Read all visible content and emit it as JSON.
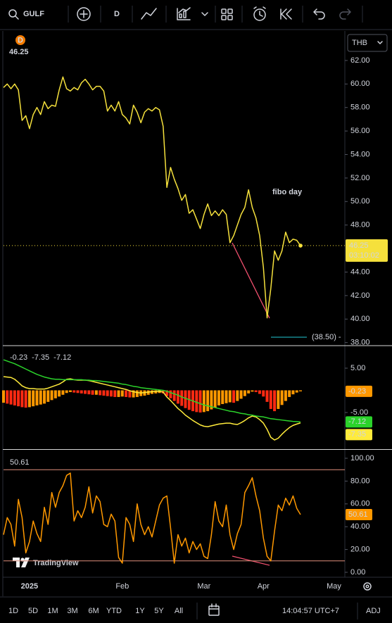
{
  "toolbar": {
    "symbol": "GULF",
    "interval": "D"
  },
  "watermark": "TradingView",
  "bottom_bar": {
    "ranges": [
      "1D",
      "5D",
      "1M",
      "3M",
      "6M",
      "YTD",
      "1Y",
      "5Y",
      "All"
    ],
    "clock": "14:04:57 UTC+7",
    "adjust": "ADJ"
  },
  "chart_data": [
    {
      "type": "line",
      "categories": [
        null,
        null,
        null,
        null,
        null,
        null,
        null,
        "2025",
        null,
        null,
        null,
        null,
        null,
        null,
        null,
        null,
        null,
        null,
        null,
        null,
        null,
        null,
        null,
        null,
        null,
        null,
        null,
        null,
        null,
        null,
        null,
        null,
        "Feb",
        null,
        null,
        null,
        null,
        null,
        null,
        null,
        null,
        null,
        null,
        null,
        null,
        null,
        null,
        null,
        null,
        null,
        null,
        null,
        null,
        null,
        "Mar",
        null,
        null,
        null,
        null,
        null,
        null,
        null,
        null,
        null,
        null,
        null,
        null,
        null,
        null,
        null,
        "Apr",
        null,
        null,
        null,
        null,
        null,
        null,
        null,
        null,
        null,
        null,
        null,
        null,
        null,
        null,
        null,
        null,
        null,
        null,
        "May",
        null,
        null
      ],
      "series": [
        {
          "color": "#f5e03c",
          "values": [
            59.7,
            60.0,
            59.6,
            60.0,
            59.5,
            56.9,
            57.3,
            56.2,
            57.4,
            58.0,
            57.4,
            58.5,
            57.9,
            58.2,
            58.1,
            59.5,
            60.6,
            59.6,
            59.4,
            59.7,
            59.5,
            60.1,
            60.4,
            60.0,
            59.5,
            59.8,
            59.8,
            59.4,
            57.7,
            58.2,
            57.7,
            58.5,
            57.4,
            57.1,
            56.6,
            58.2,
            57.6,
            56.7,
            57.6,
            57.9,
            57.7,
            58.0,
            57.8,
            56.4,
            51.2,
            52.9,
            51.9,
            51.1,
            50.1,
            50.6,
            49.0,
            49.3,
            48.5,
            47.7,
            48.9,
            49.8,
            48.8,
            49.2,
            48.8,
            49.3,
            48.9,
            46.5,
            47.1,
            48.0,
            48.9,
            49.5,
            51.0,
            49.5,
            48.6,
            47.1,
            44.4,
            40.1,
            42.6,
            45.8,
            45.0,
            45.8,
            47.4,
            46.5,
            46.8,
            46.7,
            46.25,
            null,
            null,
            null,
            null,
            null,
            null,
            null,
            null,
            null,
            null,
            null
          ]
        }
      ],
      "ylim": [
        37.8,
        64.45
      ],
      "yticks": [
        {
          "value": 38,
          "label": "38.00"
        },
        {
          "value": 40,
          "label": "40.00"
        },
        {
          "value": 42,
          "label": "42.00"
        },
        {
          "value": 44,
          "label": "44.00"
        },
        {
          "value": 48,
          "label": "48.00"
        },
        {
          "value": 50,
          "label": "50.00"
        },
        {
          "value": 52,
          "label": "52.00"
        },
        {
          "value": 54,
          "label": "54.00"
        },
        {
          "value": 56,
          "label": "56.00"
        },
        {
          "value": 58,
          "label": "58.00"
        },
        {
          "value": 60,
          "label": "60.00"
        },
        {
          "value": 62,
          "label": "62.00"
        }
      ],
      "last_price_line": true,
      "interval_badge": "D",
      "currency": "THB",
      "countdown": "03:10:02",
      "annotations": [
        {
          "text": "fibo day",
          "color": "#1e9fd0"
        },
        {
          "text": "(38.50) -",
          "color": "#26c6da"
        }
      ]
    },
    {
      "type": "macd",
      "series": [
        {
          "type": "bar",
          "up_color": "#ff9800",
          "down_color": "#ff2a12",
          "values": [
            -2.8,
            -3.0,
            -3.2,
            -3.4,
            -3.6,
            -3.8,
            -3.9,
            -3.8,
            -3.6,
            -3.4,
            -3.2,
            -3.0,
            -2.6,
            -2.2,
            -1.8,
            -1.4,
            -1.0,
            -0.6,
            -0.4,
            -0.5,
            -0.6,
            -0.7,
            -0.8,
            -0.9,
            -1.0,
            -1.0,
            -1.1,
            -1.2,
            -1.3,
            -1.4,
            -1.5,
            -1.5,
            -1.4,
            -1.5,
            -1.6,
            -1.6,
            -1.5,
            -1.3,
            -1.2,
            -1.0,
            -0.8,
            -0.7,
            -0.6,
            -0.7,
            -1.3,
            -1.8,
            -2.4,
            -3.0,
            -3.5,
            -4.0,
            -4.4,
            -4.7,
            -4.9,
            -5.0,
            -4.9,
            -4.7,
            -4.3,
            -3.9,
            -3.4,
            -3.1,
            -2.9,
            -2.7,
            -2.8,
            -2.4,
            -1.9,
            -1.3,
            -0.7,
            -0.3,
            -0.4,
            -0.8,
            -1.4,
            -2.6,
            -4.2,
            -4.7,
            -4.2,
            -3.3,
            -2.4,
            -1.5,
            -0.9,
            -0.5,
            -0.23,
            null,
            null,
            null,
            null,
            null,
            null,
            null,
            null,
            null,
            null,
            null
          ]
        },
        {
          "type": "line",
          "color": "#ffeb3b",
          "values": [
            3.1,
            3.0,
            2.9,
            2.5,
            1.8,
            1.0,
            0.6,
            0.4,
            0.4,
            0.3,
            0.3,
            0.3,
            0.5,
            0.8,
            1.1,
            1.4,
            1.9,
            2.5,
            2.6,
            2.4,
            2.3,
            2.3,
            2.3,
            2.2,
            2.0,
            1.8,
            1.6,
            1.4,
            1.2,
            1.0,
            0.8,
            0.6,
            0.4,
            0.2,
            -0.1,
            -0.3,
            -0.5,
            -0.6,
            -0.5,
            -0.4,
            -0.3,
            -0.2,
            -0.2,
            -0.4,
            -1.5,
            -2.3,
            -3.2,
            -4.1,
            -4.8,
            -5.6,
            -6.2,
            -6.8,
            -7.3,
            -7.8,
            -8.1,
            -8.2,
            -8.0,
            -7.8,
            -7.6,
            -7.5,
            -7.4,
            -7.4,
            -7.6,
            -7.7,
            -7.3,
            -6.8,
            -6.2,
            -5.8,
            -6.0,
            -6.6,
            -7.4,
            -8.8,
            -10.6,
            -11.2,
            -10.8,
            -9.9,
            -9.1,
            -8.4,
            -7.9,
            -7.6,
            -7.35,
            null,
            null,
            null,
            null,
            null,
            null,
            null,
            null,
            null,
            null,
            null
          ]
        },
        {
          "type": "line",
          "color": "#2bd32b",
          "values": [
            6.9,
            6.6,
            6.3,
            6.0,
            5.6,
            5.2,
            4.8,
            4.4,
            4.0,
            3.6,
            3.3,
            3.0,
            2.8,
            2.6,
            2.5,
            2.5,
            2.4,
            2.4,
            2.4,
            2.4,
            2.4,
            2.4,
            2.3,
            2.3,
            2.2,
            2.2,
            2.1,
            2.0,
            1.9,
            1.8,
            1.7,
            1.6,
            1.4,
            1.3,
            1.1,
            0.9,
            0.8,
            0.6,
            0.5,
            0.4,
            0.3,
            0.2,
            0.1,
            0.0,
            -0.2,
            -0.5,
            -0.8,
            -1.1,
            -1.5,
            -1.8,
            -2.1,
            -2.4,
            -2.7,
            -3.0,
            -3.3,
            -3.5,
            -3.7,
            -3.9,
            -4.1,
            -4.3,
            -4.5,
            -4.7,
            -4.8,
            -5.0,
            -5.2,
            -5.3,
            -5.5,
            -5.6,
            -5.8,
            -5.9,
            -6.0,
            -6.2,
            -6.4,
            -6.5,
            -6.6,
            -6.7,
            -6.8,
            -6.9,
            -7.0,
            -7.05,
            -7.12,
            null,
            null,
            null,
            null,
            null,
            null,
            null,
            null,
            null,
            null,
            null
          ]
        }
      ],
      "ylim": [
        -13.1,
        9.92
      ],
      "yticks": [
        {
          "value": -5,
          "label": "-5.00"
        },
        {
          "value": 5,
          "label": "5.00"
        }
      ]
    },
    {
      "type": "line",
      "series": [
        {
          "color": "#ff9800",
          "values": [
            33,
            48,
            42,
            23,
            64,
            48,
            17,
            27,
            45,
            34,
            27,
            57,
            42,
            70,
            57,
            70,
            76,
            85,
            87,
            45,
            54,
            48,
            57,
            75,
            52,
            67,
            62,
            42,
            40,
            51,
            45,
            13,
            8,
            48,
            42,
            27,
            60,
            42,
            33,
            40,
            31,
            45,
            59,
            65,
            67,
            39,
            8,
            33,
            23,
            30,
            17,
            27,
            20,
            25,
            14,
            12,
            33,
            62,
            45,
            40,
            59,
            33,
            20,
            34,
            42,
            70,
            76,
            83,
            67,
            54,
            30,
            14,
            10,
            36,
            59,
            54,
            65,
            59,
            67,
            56,
            50.61,
            null,
            null,
            null,
            null,
            null,
            null,
            null,
            null,
            null,
            null,
            null
          ]
        }
      ],
      "levels": [
        10,
        90
      ],
      "level_color": "#e0907c",
      "ylim": [
        -3.1,
        106.8
      ],
      "yticks": [
        {
          "value": 0,
          "label": "0.00"
        },
        {
          "value": 20,
          "label": "20.00"
        },
        {
          "value": 40,
          "label": "40.00"
        },
        {
          "value": 60,
          "label": "60.00"
        },
        {
          "value": 80,
          "label": "80.00"
        },
        {
          "value": 100,
          "label": "100.00"
        }
      ]
    }
  ]
}
